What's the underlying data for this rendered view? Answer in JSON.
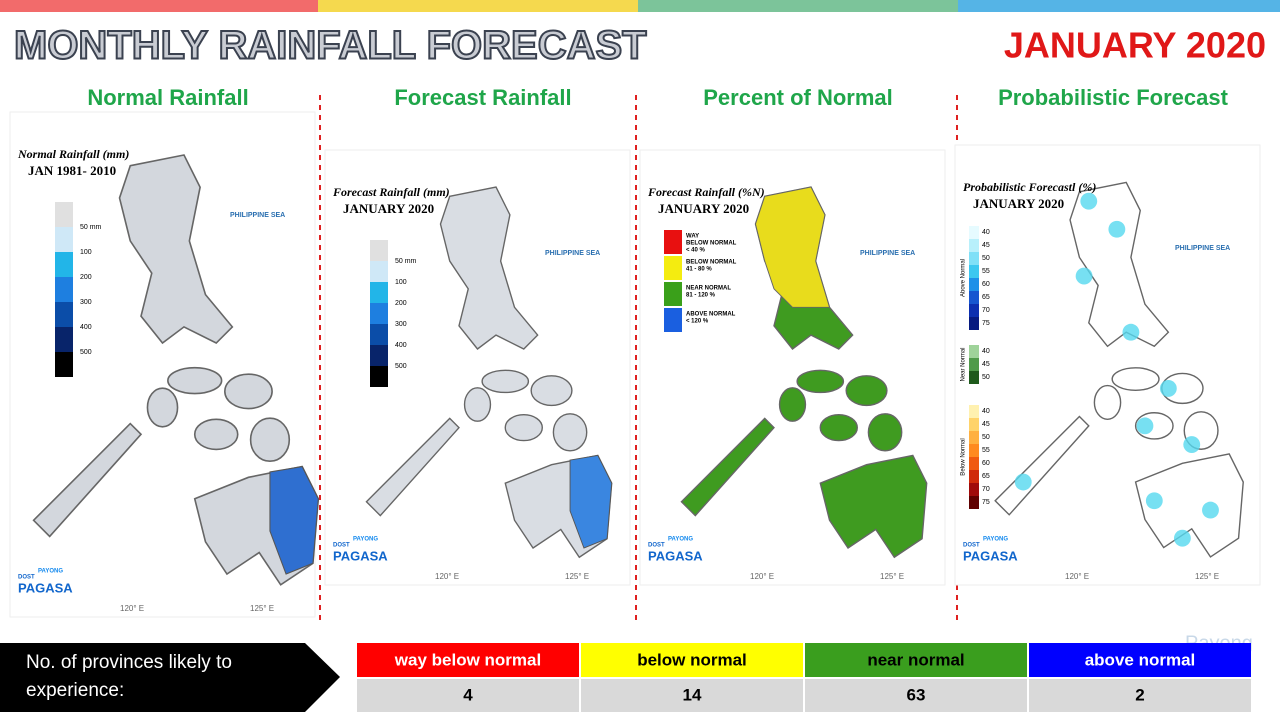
{
  "header": {
    "title": "MONTHLY RAINFALL FORECAST",
    "date": "JANUARY 2020",
    "watermark": "Payong"
  },
  "panels": [
    {
      "title": "Normal Rainfall",
      "map_title": "Normal Rainfall (mm)",
      "map_subtitle": "JAN 1981- 2010",
      "legend": [
        "50 mm",
        100,
        200,
        300,
        400,
        500
      ],
      "sea_label": "PHILIPPINE SEA",
      "lon_labels": [
        "120° E",
        "125° E"
      ],
      "logo": [
        "DOST",
        "PAYONG",
        "PAGASA"
      ]
    },
    {
      "title": "Forecast Rainfall",
      "map_title": "Forecast Rainfall (mm)",
      "map_subtitle": "JANUARY 2020",
      "legend": [
        "50 mm",
        100,
        200,
        300,
        400,
        500
      ],
      "sea_label": "PHILIPPINE SEA",
      "lon_labels": [
        "120° E",
        "125° E"
      ],
      "logo": [
        "DOST",
        "PAYONG",
        "PAGASA"
      ]
    },
    {
      "title": "Percent of Normal",
      "map_title": "Forecast Rainfall (%N)",
      "map_subtitle": "JANUARY 2020",
      "classes": [
        [
          "WAY",
          "BELOW NORMAL",
          "< 40 %"
        ],
        [
          "BELOW NORMAL",
          "41 - 80 %"
        ],
        [
          "NEAR NORMAL",
          "81 - 120 %"
        ],
        [
          "ABOVE NORMAL",
          "< 120 %"
        ]
      ],
      "sea_label": "PHILIPPINE SEA",
      "lon_labels": [
        "120° E",
        "125° E"
      ],
      "logo": [
        "DOST",
        "PAYONG",
        "PAGASA"
      ]
    },
    {
      "title": "Probabilistic Forecast",
      "map_title": "Probabilistic Forecastl (%)",
      "map_subtitle": "JANUARY 2020",
      "groups": [
        {
          "name": "Above Normal",
          "ticks": [
            40,
            45,
            50,
            55,
            60,
            65,
            70,
            75
          ]
        },
        {
          "name": "Near Normal",
          "ticks": [
            40,
            45,
            50
          ]
        },
        {
          "name": "Below Normal",
          "ticks": [
            40,
            45,
            50,
            55,
            60,
            65,
            70,
            75
          ]
        }
      ],
      "sea_label": "PHILIPPINE SEA",
      "lon_labels": [
        "120° E",
        "125° E"
      ],
      "logo": [
        "DOST",
        "PAYONG",
        "PAGASA"
      ]
    }
  ],
  "summary": {
    "label": "No. of provinces likely to experience:",
    "categories": [
      {
        "name": "way below normal",
        "count": 4
      },
      {
        "name": "below normal",
        "count": 14
      },
      {
        "name": "near normal",
        "count": 63
      },
      {
        "name": "above normal",
        "count": 2
      }
    ]
  }
}
